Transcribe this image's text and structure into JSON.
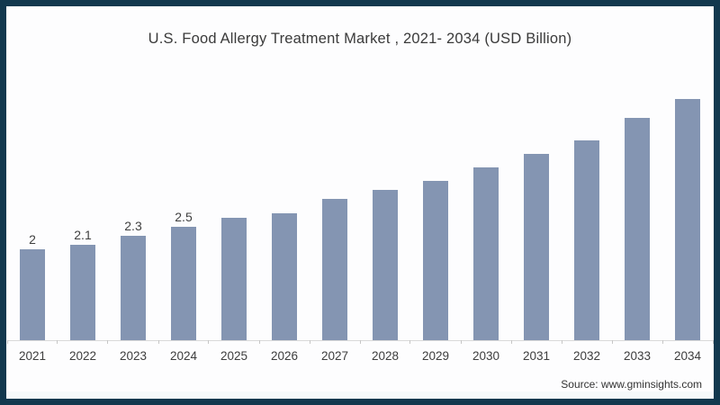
{
  "frame": {
    "border_color": "#12384e",
    "background": "#fdfdfe"
  },
  "source": "Source: www.gminsights.com",
  "chart_data": {
    "type": "bar",
    "title": "U.S. Food Allergy Treatment Market , 2021- 2034 (USD Billion)",
    "categories": [
      "2021",
      "2022",
      "2023",
      "2024",
      "2025",
      "2026",
      "2027",
      "2028",
      "2029",
      "2030",
      "2031",
      "2032",
      "2033",
      "2034"
    ],
    "values": [
      2,
      2.1,
      2.3,
      2.5,
      2.7,
      2.8,
      3.1,
      3.3,
      3.5,
      3.8,
      4.1,
      4.4,
      4.9,
      5.3
    ],
    "data_labels": [
      "2",
      "2.1",
      "2.3",
      "2.5",
      "",
      "",
      "",
      "",
      "",
      "",
      "",
      "",
      "",
      ""
    ],
    "xlabel": "",
    "ylabel": "",
    "ylim": [
      0,
      5.5
    ],
    "grid": false,
    "legend": false,
    "bar_color": "#8495b2",
    "axis_color": "#d9d9d9",
    "label_color": "#3f3f3f"
  }
}
